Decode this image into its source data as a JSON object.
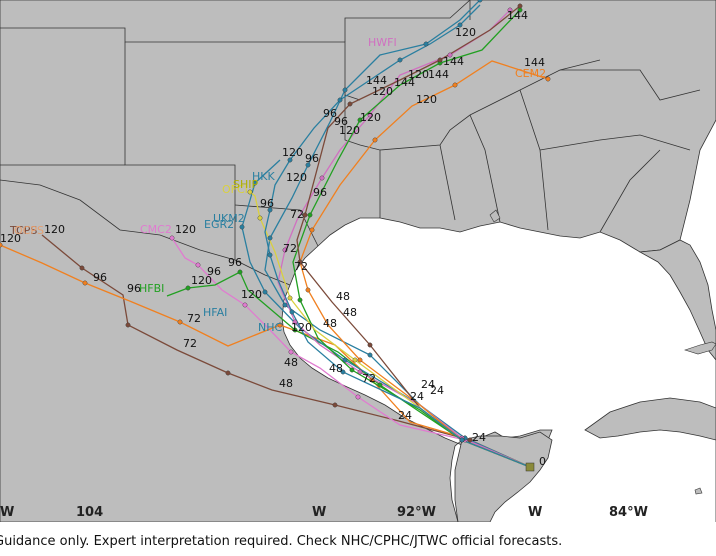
{
  "map": {
    "colors": {
      "land": "#bdbdbd",
      "water": "#ffffff",
      "border": "#333333",
      "grid": "#9a9a9a"
    },
    "longitude_labels": [
      "W",
      "104",
      "W",
      "92°W",
      "W",
      "84°W"
    ],
    "forecast_hour_labels": [
      "0",
      "24",
      "48",
      "72",
      "96",
      "120",
      "144"
    ]
  },
  "models": [
    {
      "name": "TCPS",
      "color": "#7b4a3a"
    },
    {
      "name": "OCPS",
      "color": "#e6a070"
    },
    {
      "name": "CMC2",
      "color": "#e07bd0"
    },
    {
      "name": "EGR2",
      "color": "#2a7fa0"
    },
    {
      "name": "UKM2",
      "color": "#2a7fa0"
    },
    {
      "name": "HFBI",
      "color": "#22a022"
    },
    {
      "name": "HFAI",
      "color": "#2a7fa0"
    },
    {
      "name": "NHC",
      "color": "#2a7fa0"
    },
    {
      "name": "OFCI",
      "color": "#d9d040"
    },
    {
      "name": "SHIP",
      "color": "#b0b000"
    },
    {
      "name": "HKK",
      "color": "#2a7fa0"
    },
    {
      "name": "HWFI",
      "color": "#d070c0"
    },
    {
      "name": "CEM2",
      "color": "#f08020"
    }
  ],
  "disclaimer": "Guidance only. Expert interpretation required. Check NHC/CPHC/JTWC official forecasts."
}
